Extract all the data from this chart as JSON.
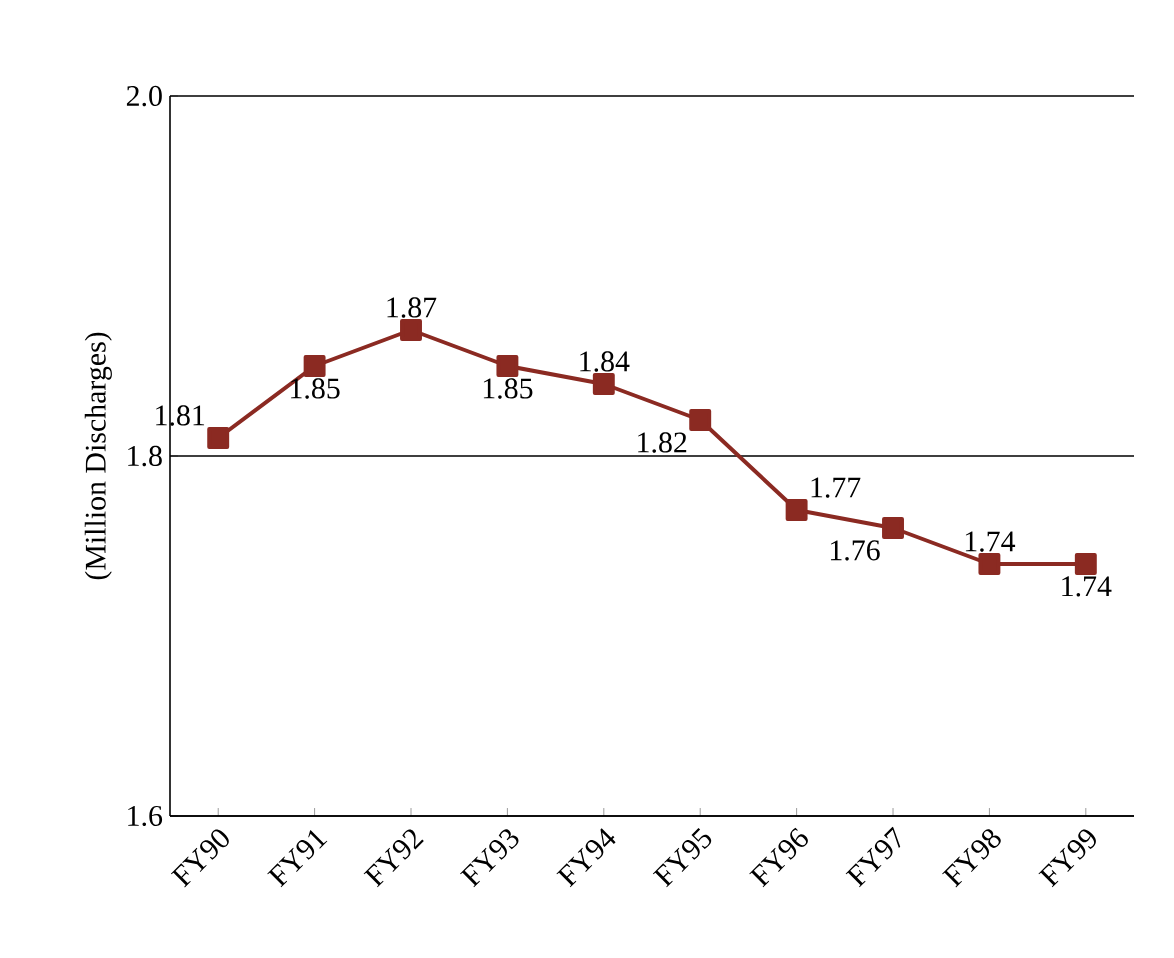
{
  "chart_data": {
    "type": "line",
    "ylabel": "(Million Discharges)",
    "categories": [
      "FY90",
      "FY91",
      "FY92",
      "FY93",
      "FY94",
      "FY95",
      "FY96",
      "FY97",
      "FY98",
      "FY99"
    ],
    "values": [
      1.81,
      1.85,
      1.87,
      1.85,
      1.84,
      1.82,
      1.77,
      1.76,
      1.74,
      1.74
    ],
    "color": "#8b2a22",
    "marker": "square",
    "line_style": "solid",
    "data_labels": true,
    "ylim": [
      1.6,
      2.0
    ],
    "yticks": [
      1.6,
      1.8,
      {
        "value": 2.0,
        "label": "2.0"
      }
    ],
    "grid": "y"
  }
}
